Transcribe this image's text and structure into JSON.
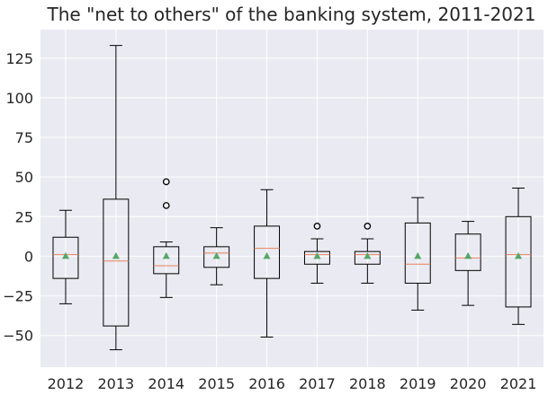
{
  "chart_data": {
    "type": "box",
    "title": "The \"net to others\" of the banking system, 2011-2021",
    "xlabel": "",
    "ylabel": "",
    "ylim": [
      -70,
      143
    ],
    "yticks": [
      -50,
      -25,
      0,
      25,
      50,
      75,
      100,
      125
    ],
    "grid": true,
    "colors": {
      "background": "#eaeaf2",
      "box": "#000000",
      "median": "#e8825f",
      "mean": "#55a868"
    },
    "categories": [
      "2012",
      "2013",
      "2014",
      "2015",
      "2016",
      "2017",
      "2018",
      "2019",
      "2020",
      "2021"
    ],
    "boxes": [
      {
        "label": "2012",
        "whislo": -30,
        "q1": -14,
        "med": 1,
        "q3": 12,
        "whishi": 29,
        "mean": 0,
        "fliers": []
      },
      {
        "label": "2013",
        "whislo": -59,
        "q1": -44,
        "med": -3,
        "q3": 36,
        "whishi": 133,
        "mean": 0,
        "fliers": []
      },
      {
        "label": "2014",
        "whislo": -26,
        "q1": -11,
        "med": -6,
        "q3": 6,
        "whishi": 9,
        "mean": 0,
        "fliers": [
          32,
          47
        ]
      },
      {
        "label": "2015",
        "whislo": -18,
        "q1": -7,
        "med": 2,
        "q3": 6,
        "whishi": 18,
        "mean": 0,
        "fliers": []
      },
      {
        "label": "2016",
        "whislo": -51,
        "q1": -14,
        "med": 5,
        "q3": 19,
        "whishi": 42,
        "mean": 0,
        "fliers": []
      },
      {
        "label": "2017",
        "whislo": -17,
        "q1": -5,
        "med": 1,
        "q3": 3,
        "whishi": 11,
        "mean": 0,
        "fliers": [
          19
        ]
      },
      {
        "label": "2018",
        "whislo": -17,
        "q1": -5,
        "med": 1,
        "q3": 3,
        "whishi": 11,
        "mean": 0,
        "fliers": [
          19
        ]
      },
      {
        "label": "2019",
        "whislo": -34,
        "q1": -17,
        "med": -5,
        "q3": 21,
        "whishi": 37,
        "mean": 0,
        "fliers": []
      },
      {
        "label": "2020",
        "whislo": -31,
        "q1": -9,
        "med": -1,
        "q3": 14,
        "whishi": 22,
        "mean": 0,
        "fliers": []
      },
      {
        "label": "2021",
        "whislo": -43,
        "q1": -32,
        "med": 1,
        "q3": 25,
        "whishi": 43,
        "mean": 0,
        "fliers": []
      }
    ]
  }
}
